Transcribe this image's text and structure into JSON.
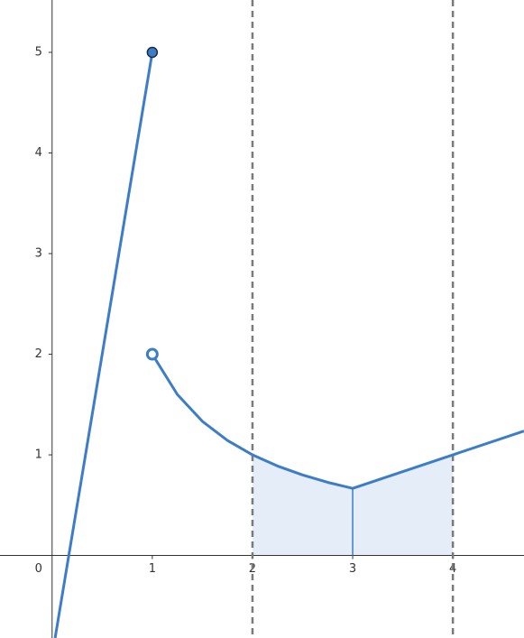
{
  "chart_data": {
    "type": "function-plot",
    "xlim": [
      -0.52,
      4.71
    ],
    "ylim": [
      -0.82,
      5.52
    ],
    "xticks": [
      0,
      1,
      2,
      3,
      4
    ],
    "yticks": [
      1,
      2,
      3,
      4,
      5
    ],
    "color": "#3d7dc8",
    "shade_color": "#e5edf8",
    "guide_color": "#7a7a7a",
    "series": [
      {
        "x": [
          0.03,
          1
        ],
        "values": [
          -0.82,
          5
        ]
      },
      {
        "x": [
          1,
          1.25,
          1.5,
          1.75,
          2,
          2.25,
          2.5,
          2.75,
          3,
          4,
          4.71
        ],
        "values": [
          2,
          1.6,
          1.333,
          1.143,
          1,
          0.889,
          0.8,
          0.727,
          0.667,
          1,
          1.237
        ]
      }
    ],
    "points": [
      {
        "x": 1,
        "y": 5,
        "filled": true
      },
      {
        "x": 1,
        "y": 2,
        "filled": false
      }
    ],
    "interval": [
      2,
      4
    ],
    "midline": {
      "x": 3,
      "y": 0.667
    }
  }
}
